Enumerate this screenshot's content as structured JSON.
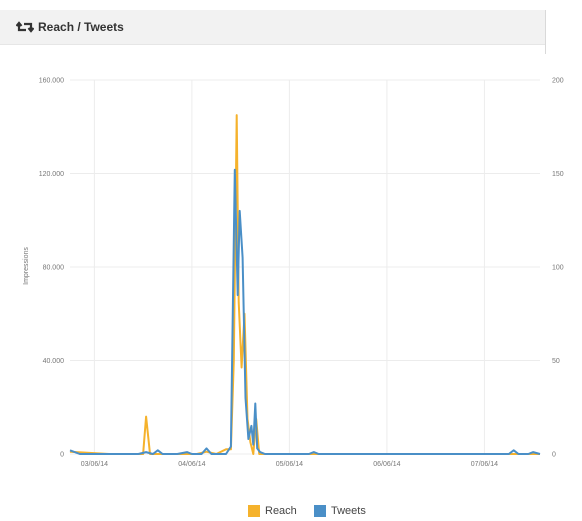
{
  "header": {
    "title": "Reach / Tweets",
    "icon": "retweet-icon"
  },
  "colors": {
    "reach": "#f5b22c",
    "tweets": "#4a8fc7",
    "grid": "#ececec",
    "header_bg": "#f2f2f2"
  },
  "chart_data": {
    "type": "line",
    "xlabel": "",
    "ylabel": "Impressions",
    "y2label": "",
    "ylim": [
      0,
      160000
    ],
    "y2lim": [
      0,
      200
    ],
    "y_ticks": [
      "0",
      "40.000",
      "80.000",
      "120.000",
      "160.000"
    ],
    "y2_ticks": [
      "0",
      "50",
      "100",
      "150",
      "200"
    ],
    "x_ticks": [
      "03/06/14",
      "04/06/14",
      "05/06/14",
      "06/06/14",
      "07/06/14"
    ],
    "x_range_days": [
      0,
      4.82
    ],
    "grid": true,
    "legend_position": "bottom-center",
    "series": [
      {
        "name": "Reach",
        "axis": "left",
        "points": [
          [
            0.0,
            1000
          ],
          [
            0.4,
            0
          ],
          [
            0.7,
            0
          ],
          [
            0.75,
            0
          ],
          [
            0.78,
            16000
          ],
          [
            0.82,
            0
          ],
          [
            0.9,
            0
          ],
          [
            1.3,
            0
          ],
          [
            1.4,
            1000
          ],
          [
            1.5,
            0
          ],
          [
            1.6,
            2000
          ],
          [
            1.65,
            2000
          ],
          [
            1.68,
            40000
          ],
          [
            1.71,
            145000
          ],
          [
            1.73,
            65000
          ],
          [
            1.76,
            37000
          ],
          [
            1.79,
            60000
          ],
          [
            1.82,
            15000
          ],
          [
            1.85,
            5000
          ],
          [
            1.88,
            0
          ],
          [
            1.91,
            15000
          ],
          [
            1.94,
            0
          ],
          [
            2.2,
            0
          ],
          [
            2.5,
            0
          ],
          [
            3.0,
            0
          ],
          [
            3.5,
            0
          ],
          [
            4.0,
            0
          ],
          [
            4.5,
            0
          ],
          [
            4.65,
            0
          ],
          [
            4.82,
            0
          ]
        ]
      },
      {
        "name": "Tweets",
        "axis": "right",
        "points": [
          [
            0.0,
            2
          ],
          [
            0.1,
            0
          ],
          [
            0.7,
            0
          ],
          [
            0.78,
            1
          ],
          [
            0.85,
            0
          ],
          [
            0.9,
            2
          ],
          [
            0.95,
            0
          ],
          [
            1.1,
            0
          ],
          [
            1.2,
            1
          ],
          [
            1.25,
            0
          ],
          [
            1.35,
            0
          ],
          [
            1.4,
            3
          ],
          [
            1.45,
            0
          ],
          [
            1.6,
            0
          ],
          [
            1.65,
            4
          ],
          [
            1.69,
            152
          ],
          [
            1.72,
            85
          ],
          [
            1.74,
            130
          ],
          [
            1.77,
            105
          ],
          [
            1.8,
            30
          ],
          [
            1.83,
            8
          ],
          [
            1.86,
            15
          ],
          [
            1.88,
            5
          ],
          [
            1.9,
            27
          ],
          [
            1.92,
            3
          ],
          [
            1.95,
            1
          ],
          [
            2.0,
            0
          ],
          [
            2.45,
            0
          ],
          [
            2.5,
            1
          ],
          [
            2.55,
            0
          ],
          [
            3.0,
            0
          ],
          [
            3.5,
            0
          ],
          [
            4.0,
            0
          ],
          [
            4.5,
            0
          ],
          [
            4.55,
            2
          ],
          [
            4.6,
            0
          ],
          [
            4.7,
            0
          ],
          [
            4.75,
            1
          ],
          [
            4.82,
            0
          ]
        ]
      }
    ]
  },
  "legend": {
    "items": [
      {
        "label": "Reach",
        "color": "#f5b22c"
      },
      {
        "label": "Tweets",
        "color": "#4a8fc7"
      }
    ]
  }
}
